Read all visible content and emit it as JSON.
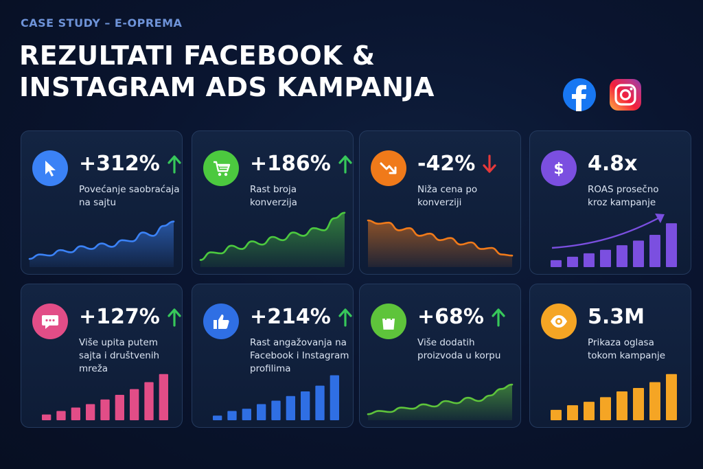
{
  "header": {
    "kicker": "CASE STUDY – E-OPREMA",
    "title_line1": "REZULTATI FACEBOOK &",
    "title_line2": "INSTAGRAM ADS KAMPANJA"
  },
  "social_icons": [
    "facebook-logo",
    "instagram-logo"
  ],
  "colors": {
    "blue": "#3b82f6",
    "green": "#4cc93f",
    "orange": "#f07a1a",
    "purple": "#7b4fe0",
    "pink": "#e24d87",
    "lime": "#5ec43b",
    "gold": "#f5a524",
    "up_arrow": "#37c85a",
    "down_arrow": "#e5393a"
  },
  "cards": [
    {
      "metric": "+312%",
      "trend": "up",
      "icon": "cursor-icon",
      "color": "#3b82f6",
      "desc_lines": [
        "Povećanje saobraćaja",
        "na sajtu"
      ]
    },
    {
      "metric": "+186%",
      "trend": "up",
      "icon": "cart-icon",
      "color": "#4cc93f",
      "desc_lines": [
        "Rast broja",
        "konverzija"
      ]
    },
    {
      "metric": "-42%",
      "trend": "down",
      "icon": "trend-down-icon",
      "color": "#f07a1a",
      "desc_lines": [
        "Niža cena po",
        "konverziji"
      ]
    },
    {
      "metric": "4.8x",
      "trend": "none",
      "icon": "dollar-icon",
      "color": "#7b4fe0",
      "desc_lines": [
        "ROAS prosečno",
        "kroz kampanje"
      ]
    },
    {
      "metric": "+127%",
      "trend": "up",
      "icon": "chat-icon",
      "color": "#e24d87",
      "desc_lines": [
        "Više upita putem",
        "sajta i društvenih mreža"
      ]
    },
    {
      "metric": "+214%",
      "trend": "up",
      "icon": "thumbs-up-icon",
      "color": "#2f6fe4",
      "desc_lines": [
        "Rast angažovanja na",
        "Facebook i Instagram",
        "profilima"
      ]
    },
    {
      "metric": "+68%",
      "trend": "up",
      "icon": "shopping-bag-icon",
      "color": "#5ec43b",
      "desc_lines": [
        "Više dodatih",
        "proizvoda u korpu"
      ]
    },
    {
      "metric": "5.3M",
      "trend": "none",
      "icon": "eye-icon",
      "color": "#f5a524",
      "desc_lines": [
        "Prikaza oglasa",
        "tokom kampanje"
      ]
    }
  ],
  "chart_data": [
    {
      "type": "area",
      "values": [
        10,
        18,
        16,
        26,
        22,
        33,
        28,
        38,
        32,
        44,
        42,
        58,
        52,
        70,
        78
      ]
    },
    {
      "type": "area",
      "values": [
        8,
        22,
        20,
        34,
        28,
        42,
        36,
        50,
        44,
        58,
        52,
        66,
        62,
        84,
        94
      ]
    },
    {
      "type": "area",
      "values": [
        80,
        74,
        76,
        62,
        66,
        52,
        56,
        44,
        48,
        36,
        40,
        28,
        30,
        18,
        16
      ]
    },
    {
      "type": "bar",
      "values": [
        12,
        18,
        24,
        30,
        38,
        46,
        56,
        76
      ],
      "trend_arrow": true
    },
    {
      "type": "bar",
      "values": [
        10,
        16,
        22,
        28,
        36,
        44,
        54,
        66,
        80
      ]
    },
    {
      "type": "bar",
      "values": [
        8,
        16,
        20,
        28,
        34,
        42,
        50,
        60,
        78
      ]
    },
    {
      "type": "area",
      "values": [
        6,
        12,
        10,
        18,
        16,
        24,
        20,
        30,
        26,
        36,
        30,
        40,
        52,
        60
      ]
    },
    {
      "type": "bar",
      "values": [
        18,
        26,
        32,
        40,
        50,
        56,
        66,
        80
      ]
    }
  ]
}
